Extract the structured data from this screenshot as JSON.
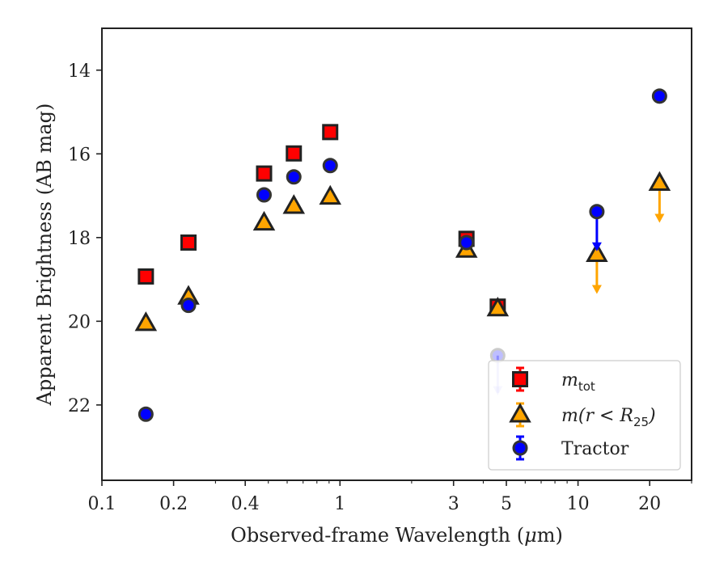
{
  "chart_data": {
    "type": "scatter",
    "xlabel_main": "Observed-frame Wavelength (",
    "xlabel_mu": "μ",
    "xlabel_tail": "m)",
    "ylabel": "Apparent Brightness (AB mag)",
    "x_scale": "log",
    "xlim": [
      0.1,
      30
    ],
    "ylim": [
      23.8,
      13.0
    ],
    "y_inverted": true,
    "x_ticks": [
      0.1,
      0.2,
      0.4,
      1,
      3,
      5,
      10,
      20
    ],
    "x_tick_labels": [
      "0.1",
      "0.2",
      "0.4",
      "1",
      "3",
      "5",
      "10",
      "20"
    ],
    "y_ticks": [
      14,
      16,
      18,
      20,
      22
    ],
    "y_tick_labels": [
      "14",
      "16",
      "18",
      "20",
      "22"
    ],
    "grid": false,
    "legend_position": "lower-right",
    "series": [
      {
        "name": "m_tot",
        "name_main": "m",
        "name_sub": "tot",
        "marker": "square",
        "color": "#ff0000",
        "edge_color": "#222222",
        "x": [
          0.153,
          0.231,
          0.48,
          0.64,
          0.91,
          3.4,
          4.6
        ],
        "y": [
          18.93,
          18.12,
          16.47,
          15.99,
          15.48,
          18.03,
          19.65
        ]
      },
      {
        "name": "m(r < R25)",
        "name_main": "m(r < R",
        "name_sub": "25",
        "name_tail": ")",
        "marker": "triangle",
        "color": "#ffa500",
        "edge_color": "#222222",
        "x": [
          0.153,
          0.231,
          0.48,
          0.64,
          0.91,
          3.4,
          4.6,
          12.0,
          22.0
        ],
        "y": [
          20.05,
          19.42,
          17.65,
          17.25,
          17.03,
          18.3,
          19.7,
          18.4,
          16.7
        ],
        "upper_limits": [
          false,
          false,
          false,
          false,
          false,
          false,
          false,
          true,
          true
        ]
      },
      {
        "name": "Tractor",
        "marker": "circle",
        "color": "#0000ff",
        "edge_color": "#333333",
        "x": [
          0.153,
          0.231,
          0.48,
          0.64,
          0.91,
          3.4,
          4.6,
          12.0,
          22.0
        ],
        "y": [
          22.22,
          19.62,
          16.98,
          16.55,
          16.28,
          18.12,
          20.82,
          17.38,
          14.62
        ],
        "upper_limits": [
          false,
          false,
          false,
          false,
          false,
          false,
          true,
          true,
          false
        ]
      }
    ]
  }
}
